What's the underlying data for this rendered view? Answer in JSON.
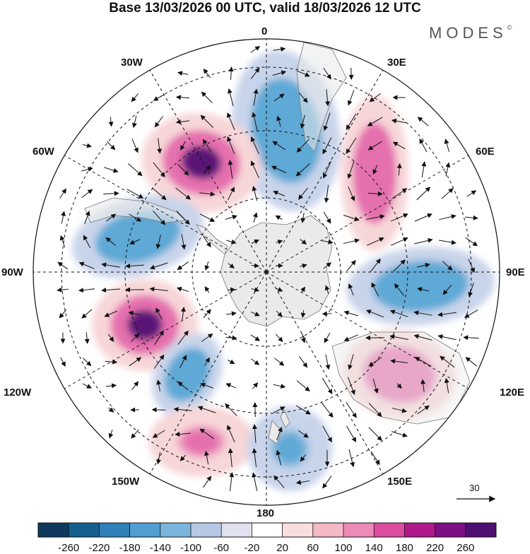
{
  "header": {
    "title": "Base 13/03/2026 00 UTC, valid 18/03/2026 12 UTC",
    "brand": "MODES",
    "brand_mark": "©"
  },
  "map": {
    "projection": "south-polar-stereographic",
    "longitude_labels": {
      "top": "0",
      "top_left": "30W",
      "top_right": "30E",
      "upper_left": "60W",
      "upper_right": "60E",
      "left": "90W",
      "right": "90E",
      "lower_left": "120W",
      "lower_right": "120E",
      "bottom_left": "150W",
      "bottom_right": "150E",
      "bottom": "180"
    },
    "colors": {
      "neg_strong": "#1b5f99",
      "neg_mid": "#5ea9d6",
      "neg_weak": "#c8d4ea",
      "pos_weak": "#f7d6d8",
      "pos_mid": "#e56fae",
      "pos_strong": "#5a1477",
      "land": "#eaeaea"
    },
    "reference_vector": "30"
  },
  "colorbar": {
    "labels": [
      "-260",
      "-220",
      "-180",
      "-140",
      "-100",
      "-60",
      "-20",
      "20",
      "60",
      "100",
      "140",
      "180",
      "220",
      "260"
    ],
    "colors": [
      "#0d3a5c",
      "#155f8f",
      "#2d80b8",
      "#4f9fd0",
      "#7bb5dd",
      "#b6c8e6",
      "#e1e1ef",
      "#ffffff",
      "#f9dede",
      "#f4b8c7",
      "#ec8ab8",
      "#dc4da1",
      "#b0198a",
      "#7d0e86",
      "#4f0f73"
    ]
  }
}
